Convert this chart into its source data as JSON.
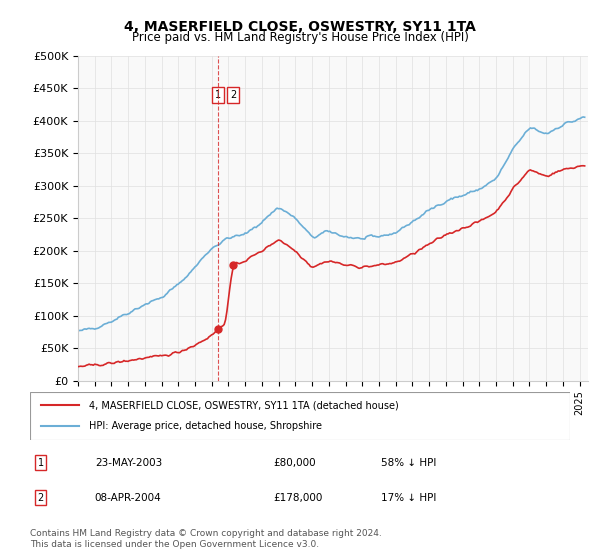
{
  "title": "4, MASERFIELD CLOSE, OSWESTRY, SY11 1TA",
  "subtitle": "Price paid vs. HM Land Registry's House Price Index (HPI)",
  "ylabel_ticks": [
    "£0",
    "£50K",
    "£100K",
    "£150K",
    "£200K",
    "£250K",
    "£300K",
    "£350K",
    "£400K",
    "£450K",
    "£500K"
  ],
  "ytick_values": [
    0,
    50000,
    100000,
    150000,
    200000,
    250000,
    300000,
    350000,
    400000,
    450000,
    500000
  ],
  "ylim": [
    0,
    500000
  ],
  "xlim_start": 1995.0,
  "xlim_end": 2025.5,
  "hpi_color": "#6baed6",
  "price_color": "#d62728",
  "dashed_line_color": "#d62728",
  "transaction1_date": 2003.39,
  "transaction1_price": 80000,
  "transaction1_label": "1",
  "transaction2_date": 2004.27,
  "transaction2_price": 178000,
  "transaction2_label": "2",
  "legend_house_label": "4, MASERFIELD CLOSE, OSWESTRY, SY11 1TA (detached house)",
  "legend_hpi_label": "HPI: Average price, detached house, Shropshire",
  "table_row1": [
    "1",
    "23-MAY-2003",
    "£80,000",
    "58% ↓ HPI"
  ],
  "table_row2": [
    "2",
    "08-APR-2004",
    "£178,000",
    "17% ↓ HPI"
  ],
  "footer": "Contains HM Land Registry data © Crown copyright and database right 2024.\nThis data is licensed under the Open Government Licence v3.0.",
  "background_color": "#ffffff",
  "grid_color": "#e0e0e0"
}
